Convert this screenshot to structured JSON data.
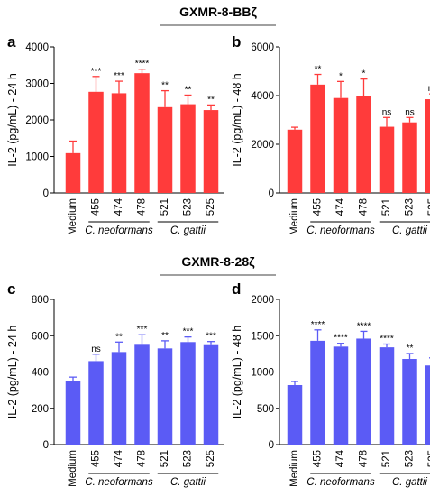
{
  "figure": {
    "section_titles": [
      "GXMR-8-BBζ",
      "GXMR-8-28ζ"
    ]
  },
  "chart_data": [
    {
      "type": "bar",
      "panel": "a",
      "ylabel": "IL-2 (pg/mL) - 24 h",
      "ylim": [
        0,
        4000
      ],
      "yticks": [
        0,
        1000,
        2000,
        3000,
        4000
      ],
      "categories": [
        "Medium",
        "455",
        "474",
        "478",
        "521",
        "523",
        "525"
      ],
      "values": [
        1090,
        2770,
        2730,
        3280,
        2350,
        2430,
        2270
      ],
      "errors": [
        330,
        420,
        330,
        110,
        450,
        250,
        140
      ],
      "significance": [
        "",
        "***",
        "***",
        "****",
        "**",
        "**",
        "**"
      ],
      "groups": [
        {
          "label": "C. neoformans",
          "from": 1,
          "to": 3
        },
        {
          "label": "C. gattii",
          "from": 4,
          "to": 6
        }
      ],
      "color": "#ff3b3b"
    },
    {
      "type": "bar",
      "panel": "b",
      "ylabel": "IL-2 (pg/mL) - 48 h",
      "ylim": [
        0,
        6000
      ],
      "yticks": [
        0,
        2000,
        4000,
        6000
      ],
      "categories": [
        "Medium",
        "455",
        "474",
        "478",
        "521",
        "523",
        "525"
      ],
      "values": [
        2600,
        4450,
        3900,
        4000,
        2720,
        2900,
        3850
      ],
      "errors": [
        100,
        420,
        680,
        680,
        380,
        200,
        220
      ],
      "significance": [
        "",
        "**",
        "*",
        "*",
        "ns",
        "ns",
        "ns"
      ],
      "groups": [
        {
          "label": "C. neoformans",
          "from": 1,
          "to": 3
        },
        {
          "label": "C. gattii",
          "from": 4,
          "to": 6
        }
      ],
      "color": "#ff3b3b"
    },
    {
      "type": "bar",
      "panel": "c",
      "ylabel": "IL-2 (pg/mL) - 24 h",
      "ylim": [
        0,
        800
      ],
      "yticks": [
        0,
        200,
        400,
        600,
        800
      ],
      "categories": [
        "Medium",
        "455",
        "474",
        "478",
        "521",
        "523",
        "525"
      ],
      "values": [
        350,
        460,
        510,
        550,
        530,
        565,
        548
      ],
      "errors": [
        22,
        38,
        55,
        55,
        42,
        28,
        20
      ],
      "significance": [
        "",
        "ns",
        "**",
        "***",
        "**",
        "***",
        "***"
      ],
      "groups": [
        {
          "label": "C. neoformans",
          "from": 1,
          "to": 3
        },
        {
          "label": "C. gattii",
          "from": 4,
          "to": 6
        }
      ],
      "color": "#5b5bf5"
    },
    {
      "type": "bar",
      "panel": "d",
      "ylabel": "IL-2 (pg/mL) - 48 h",
      "ylim": [
        0,
        2000
      ],
      "yticks": [
        0,
        500,
        1000,
        1500,
        2000
      ],
      "categories": [
        "Medium",
        "455",
        "474",
        "478",
        "521",
        "523",
        "525"
      ],
      "values": [
        820,
        1430,
        1350,
        1460,
        1340,
        1180,
        1090
      ],
      "errors": [
        50,
        150,
        45,
        100,
        45,
        75,
        105
      ],
      "significance": [
        "",
        "****",
        "****",
        "****",
        "****",
        "**",
        "*"
      ],
      "groups": [
        {
          "label": "C. neoformans",
          "from": 1,
          "to": 3
        },
        {
          "label": "C. gattii",
          "from": 4,
          "to": 6
        }
      ],
      "color": "#5b5bf5"
    }
  ]
}
